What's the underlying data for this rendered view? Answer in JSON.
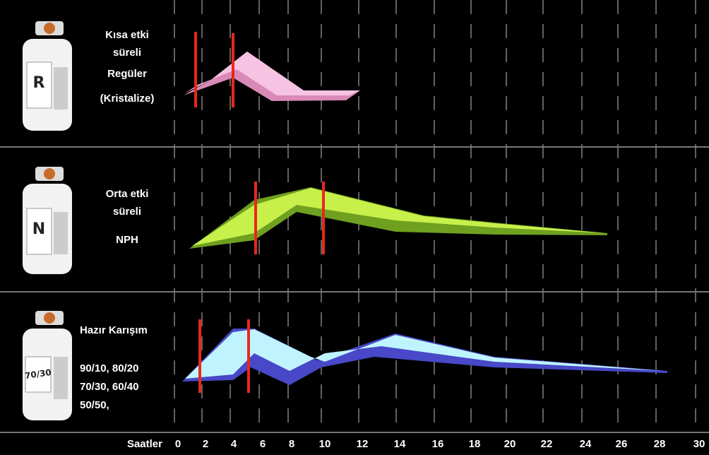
{
  "panels": [
    {
      "vial_label": "R",
      "lines": [
        "Kısa etki",
        "süreli",
        "Regüler",
        "(Kristalize)"
      ]
    },
    {
      "vial_label": "N",
      "lines": [
        "Orta etki",
        "süreli",
        "NPH"
      ]
    },
    {
      "vial_label": "70/30",
      "lines": [
        "Hazır Karışım",
        "90/10, 80/20",
        "70/30, 60/40",
        "50/50,"
      ]
    }
  ],
  "axis": {
    "label": "Saatler",
    "ticks": [
      0,
      2,
      4,
      6,
      8,
      10,
      12,
      14,
      16,
      18,
      20,
      22,
      24,
      26,
      28,
      30
    ]
  }
}
